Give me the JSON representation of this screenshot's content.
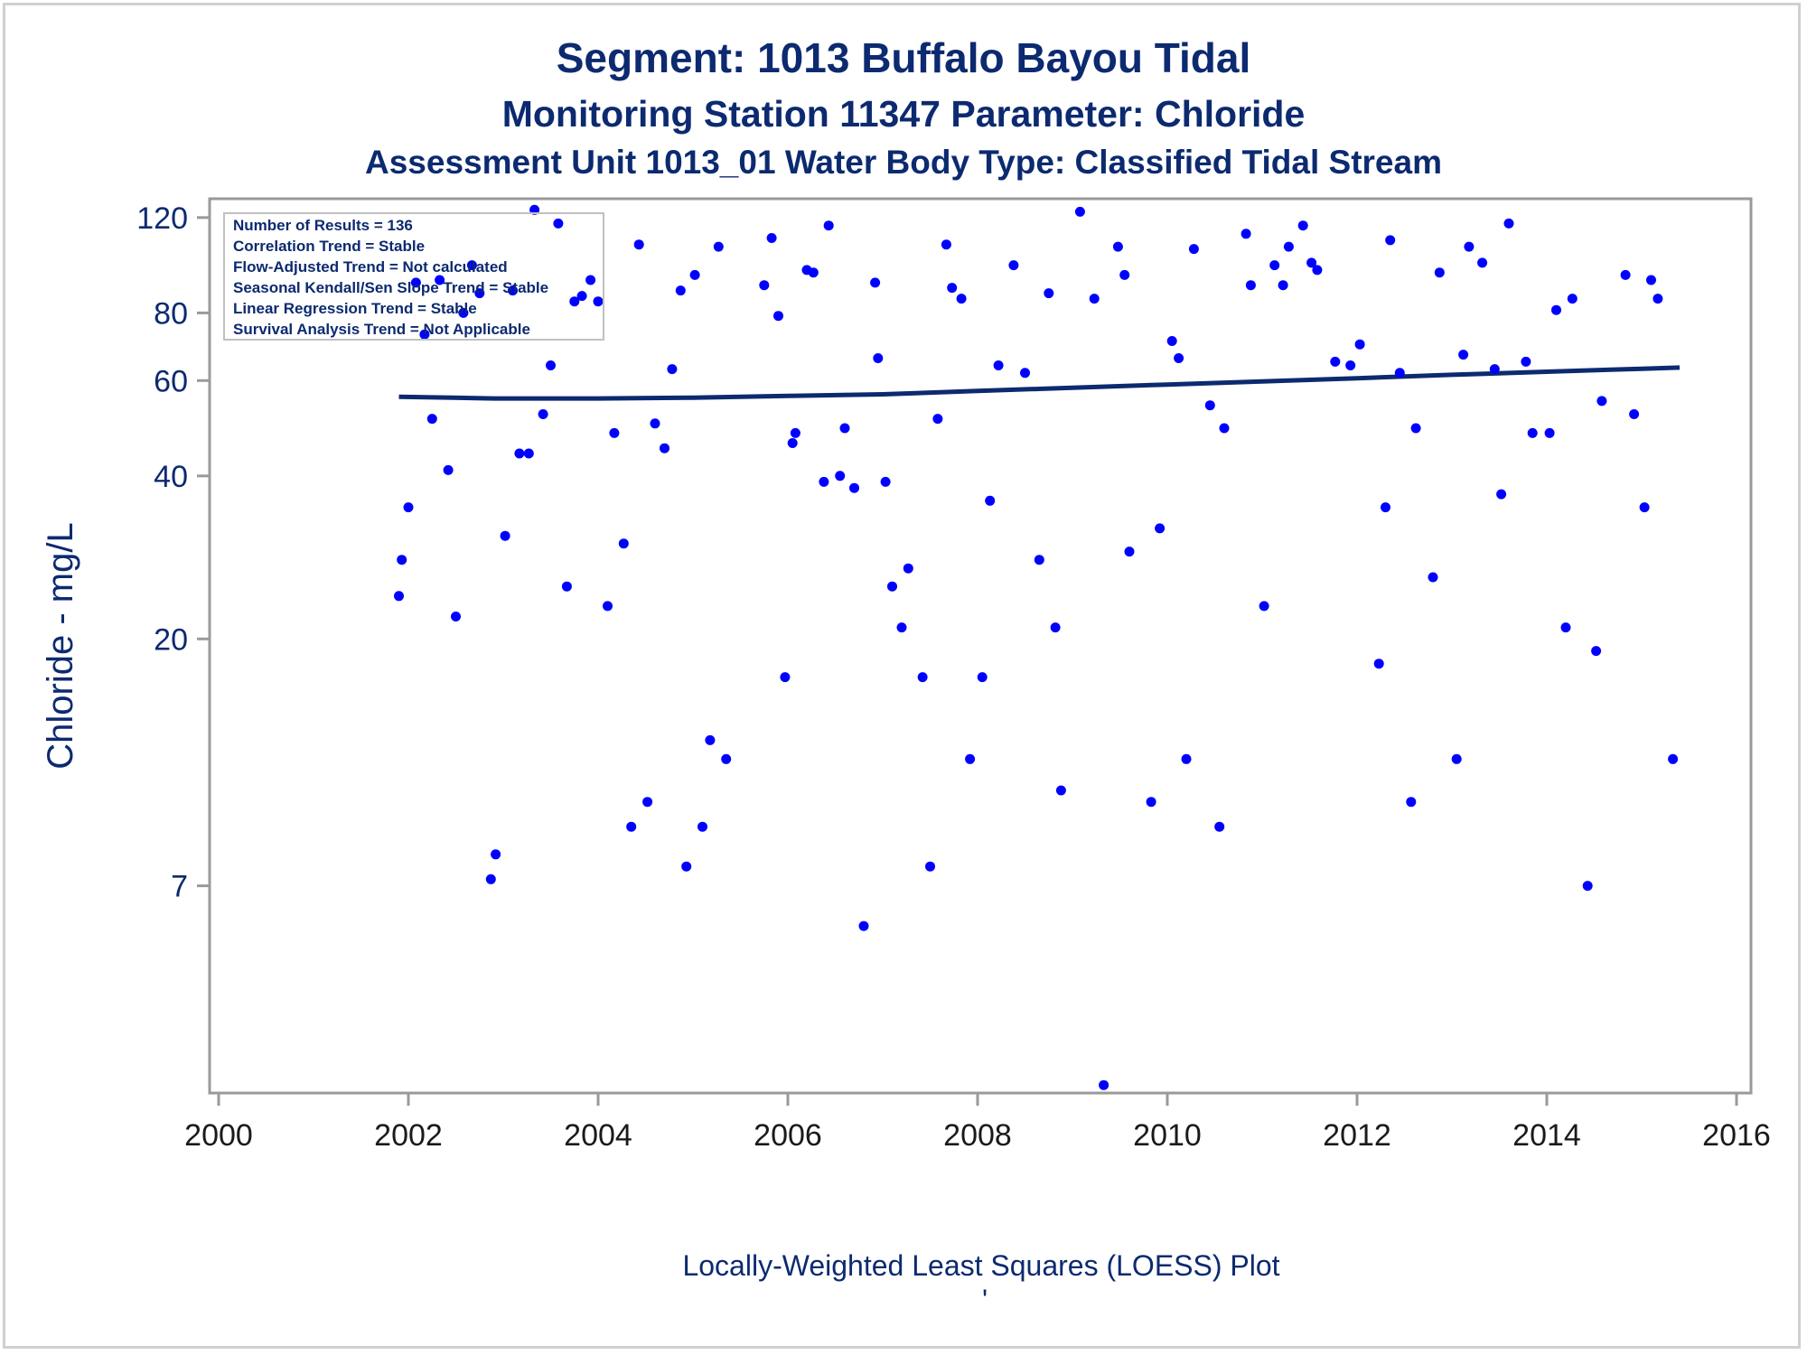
{
  "chart_data": {
    "type": "scatter",
    "title": "Segment: 1013  Buffalo Bayou Tidal",
    "subtitle": "Monitoring Station 11347 Parameter: Chloride",
    "subtitle2": "Assessment Unit 1013_01   Water Body Type: Classified Tidal Stream",
    "ylabel": "Chloride - mg/L",
    "footnote": "Locally-Weighted Least Squares (LOESS) Plot",
    "footnote_mark": "'",
    "yscale": "log",
    "xlim": [
      2000,
      2016
    ],
    "ylim": [
      2.9,
      130
    ],
    "x_ticks": [
      "2000",
      "2002",
      "2004",
      "2006",
      "2008",
      "2010",
      "2012",
      "2014",
      "2016"
    ],
    "y_ticks": [
      7,
      20,
      40,
      60,
      80,
      120
    ],
    "legend_box": [
      "Number of Results = 136",
      "Correlation Trend = Stable",
      "Flow-Adjusted Trend = Not calculated",
      "Seasonal Kendall/Sen Slope Trend = Stable",
      "Linear Regression Trend = Stable",
      "Survival Analysis Trend = Not Applicable"
    ],
    "legend_placement": "top-left",
    "colors": {
      "points": "#0000ff",
      "trend": "#0c2a70",
      "text": "#0c2a70"
    },
    "trend_line": {
      "x": [
        2001.9,
        2002.9,
        2004.0,
        2005.0,
        2006.0,
        2007.0,
        2008.0,
        2009.0,
        2010.0,
        2011.0,
        2012.0,
        2013.0,
        2014.0,
        2015.0,
        2015.4
      ],
      "y": [
        56,
        55.6,
        55.6,
        55.8,
        56.2,
        56.6,
        57.4,
        58.2,
        59.0,
        59.8,
        60.6,
        61.5,
        62.3,
        63.1,
        63.4
      ]
    },
    "series": [
      {
        "x": [
          2001.9,
          2001.93,
          2002.0,
          2002.08,
          2002.17,
          2002.25,
          2002.33,
          2002.42,
          2002.5,
          2002.58,
          2002.67,
          2002.75,
          2002.87,
          2002.92,
          2003.02,
          2003.1,
          2003.17,
          2003.27,
          2003.33,
          2003.42,
          2003.5,
          2003.58,
          2003.67,
          2003.75,
          2003.83,
          2003.92,
          2004.0,
          2004.1,
          2004.17,
          2004.27,
          2004.35,
          2004.43,
          2004.52,
          2004.6,
          2004.7,
          2004.78,
          2004.87,
          2004.93,
          2005.02,
          2005.1,
          2005.18,
          2005.27,
          2005.35,
          2005.75,
          2005.83,
          2005.9,
          2005.97,
          2006.05,
          2006.08,
          2006.2,
          2006.27,
          2006.38,
          2006.43,
          2006.55,
          2006.6,
          2006.7,
          2006.8,
          2006.92,
          2006.95,
          2007.03,
          2007.1,
          2007.2,
          2007.27,
          2007.42,
          2007.5,
          2007.58,
          2007.67,
          2007.73,
          2007.83,
          2007.92,
          2008.05,
          2008.13,
          2008.22,
          2008.38,
          2008.5,
          2008.65,
          2008.75,
          2008.82,
          2008.88,
          2009.08,
          2009.23,
          2009.33,
          2009.48,
          2009.55,
          2009.6,
          2009.83,
          2009.92,
          2010.05,
          2010.12,
          2010.2,
          2010.28,
          2010.45,
          2010.55,
          2010.6,
          2010.83,
          2010.88,
          2011.02,
          2011.13,
          2011.22,
          2011.28,
          2011.43,
          2011.52,
          2011.58,
          2011.77,
          2011.93,
          2012.03,
          2012.23,
          2012.3,
          2012.35,
          2012.45,
          2012.57,
          2012.62,
          2012.8,
          2012.87,
          2013.05,
          2013.12,
          2013.18,
          2013.32,
          2013.45,
          2013.52,
          2013.6,
          2013.78,
          2013.85,
          2014.03,
          2014.1,
          2014.2,
          2014.27,
          2014.43,
          2014.52,
          2014.58,
          2014.83,
          2014.92,
          2015.03,
          2015.1,
          2015.17,
          2015.33
        ],
        "y": [
          24,
          28,
          35,
          91,
          73,
          51,
          92,
          41,
          22,
          80,
          98,
          87,
          7.2,
          8.0,
          31,
          88,
          44,
          44,
          124,
          52,
          64,
          117,
          25,
          84,
          86,
          92,
          84,
          23,
          48,
          30,
          9,
          107,
          10,
          50,
          45,
          63,
          88,
          7.6,
          94,
          9,
          13,
          106,
          12,
          90,
          110,
          79,
          17,
          46,
          48,
          96,
          95,
          39,
          116,
          40,
          49,
          38,
          5.9,
          91,
          66,
          39,
          25,
          21,
          27,
          17,
          7.6,
          51,
          107,
          89,
          85,
          12,
          17,
          36,
          64,
          98,
          62,
          28,
          87,
          21,
          10.5,
          123,
          85,
          3.0,
          106,
          94,
          29,
          10,
          32,
          71,
          66,
          12,
          105,
          54,
          9,
          49,
          112,
          90,
          23,
          98,
          90,
          106,
          116,
          99,
          96,
          65,
          64,
          70,
          18,
          35,
          109,
          62,
          10,
          49,
          26,
          95,
          12,
          67,
          106,
          99,
          63,
          37,
          117,
          65,
          48,
          48,
          81,
          21,
          85,
          7,
          19,
          55,
          94,
          52,
          35,
          92,
          85,
          12
        ]
      }
    ]
  }
}
